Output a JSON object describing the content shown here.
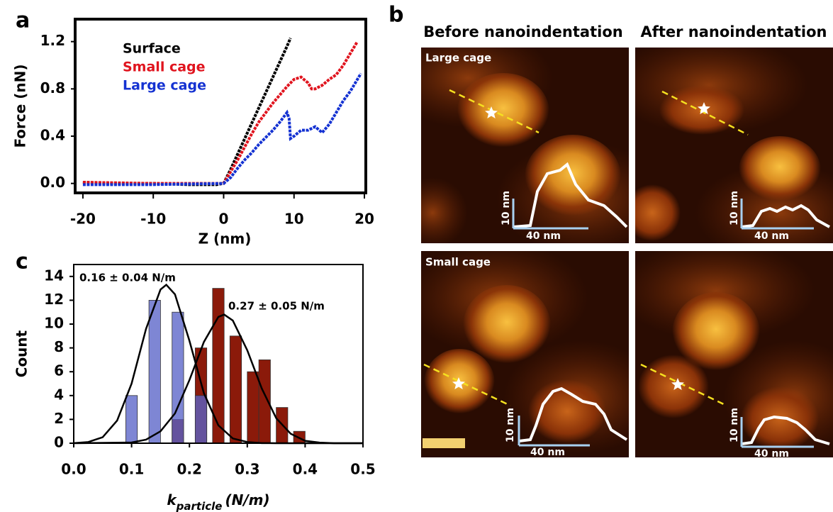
{
  "panel_labels": [
    "a",
    "b",
    "c"
  ],
  "chart_data": [
    {
      "type": "line",
      "x_label": "Z (nm)",
      "y_label": "Force (nN)",
      "xlim": [
        -21.1,
        20.2
      ],
      "ylim": [
        -0.08,
        1.39
      ],
      "xticks": [
        -20,
        -10,
        0,
        10,
        20
      ],
      "yticks": [
        {
          "value": 0,
          "label": "0.0"
        },
        0.4,
        0.8,
        1.2
      ],
      "legend": "upper left",
      "series": [
        {
          "name": "Surface",
          "color": "#000000",
          "x": [
            -20,
            -15,
            -10,
            -5,
            -1,
            0,
            1,
            2,
            3,
            4,
            5,
            6,
            7,
            8,
            9,
            9.5
          ],
          "values": [
            0.01,
            0.0,
            0.0,
            -0.01,
            -0.01,
            0.0,
            0.12,
            0.25,
            0.38,
            0.51,
            0.64,
            0.77,
            0.9,
            1.03,
            1.16,
            1.23
          ]
        },
        {
          "name": "Small cage",
          "color": "#e0141e",
          "x": [
            -20,
            -10,
            0,
            1,
            2,
            3,
            4,
            5,
            6,
            7,
            8,
            9,
            10,
            11,
            12,
            12.5,
            13,
            14,
            15,
            16,
            17,
            18,
            19
          ],
          "values": [
            0.01,
            0.0,
            0.0,
            0.1,
            0.2,
            0.31,
            0.42,
            0.52,
            0.6,
            0.68,
            0.75,
            0.82,
            0.88,
            0.9,
            0.85,
            0.8,
            0.8,
            0.83,
            0.88,
            0.92,
            1.0,
            1.1,
            1.2
          ]
        },
        {
          "name": "Large cage",
          "color": "#1432d2",
          "x": [
            -20,
            -10,
            0,
            1,
            2,
            3,
            4,
            5,
            6,
            7,
            8,
            9,
            9.3,
            9.5,
            10,
            11,
            12,
            13,
            14,
            15,
            16,
            17,
            18,
            19,
            19.5
          ],
          "values": [
            -0.01,
            -0.01,
            0.0,
            0.05,
            0.13,
            0.2,
            0.26,
            0.33,
            0.39,
            0.45,
            0.52,
            0.6,
            0.55,
            0.38,
            0.4,
            0.45,
            0.45,
            0.48,
            0.43,
            0.5,
            0.6,
            0.7,
            0.78,
            0.88,
            0.93
          ]
        }
      ]
    },
    {
      "type": "bar",
      "x_label": {
        "symbol": "k",
        "subscript": "particle",
        "unit": "(N/m)"
      },
      "y_label": "Count",
      "xlim": [
        0,
        0.5
      ],
      "ylim": [
        0,
        15
      ],
      "xticks": [
        {
          "value": 0,
          "label": "0.0"
        },
        0.1,
        0.2,
        0.3,
        0.4,
        0.5
      ],
      "yticks": [
        0,
        2,
        4,
        6,
        8,
        10,
        12,
        14
      ],
      "series": [
        {
          "color": "#8b1a0a",
          "x": [
            0.18,
            0.22,
            0.25,
            0.28,
            0.31,
            0.33,
            0.36,
            0.39
          ],
          "values": [
            2,
            8,
            13,
            9,
            6,
            7,
            3,
            1
          ]
        },
        {
          "color": "#5a64c8",
          "x": [
            0.1,
            0.14,
            0.18,
            0.22
          ],
          "values": [
            4,
            12,
            11,
            4
          ]
        }
      ],
      "fits": [
        {
          "color": "#000000",
          "x": [
            0,
            0.025,
            0.05,
            0.075,
            0.1,
            0.125,
            0.15,
            0.16,
            0.175,
            0.2,
            0.225,
            0.25,
            0.275,
            0.3,
            0.325,
            0.35,
            0.5
          ],
          "values": [
            0.01,
            0.1,
            0.5,
            1.9,
            5.0,
            9.6,
            12.9,
            13.3,
            12.5,
            8.6,
            4.2,
            1.5,
            0.4,
            0.1,
            0.01,
            0,
            0
          ]
        },
        {
          "color": "#000000",
          "x": [
            0,
            0.1,
            0.125,
            0.15,
            0.175,
            0.2,
            0.225,
            0.25,
            0.26,
            0.275,
            0.3,
            0.325,
            0.35,
            0.375,
            0.4,
            0.425,
            0.45,
            0.5
          ],
          "values": [
            0,
            0.06,
            0.3,
            1.0,
            2.5,
            5.3,
            8.5,
            10.6,
            10.8,
            10.3,
            7.8,
            4.6,
            2.1,
            0.8,
            0.2,
            0.05,
            0,
            0
          ]
        }
      ],
      "annotations": [
        "0.16 ± 0.04 N/m",
        "0.27 ± 0.05 N/m"
      ]
    }
  ],
  "panel_b": {
    "columns": [
      "Before nanoindentation",
      "After nanoindentation"
    ],
    "rows": [
      "Large cage",
      "Small cage"
    ],
    "scale_labels": {
      "height": "10 nm",
      "width": "40 nm"
    }
  }
}
